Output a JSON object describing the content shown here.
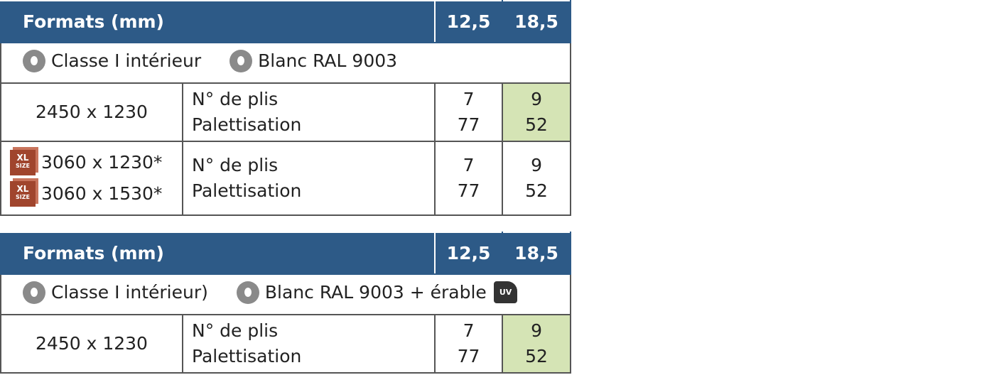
{
  "tables": [
    {
      "header": [
        "Formats (mm)",
        "12,5",
        "18,5"
      ],
      "info": [
        {
          "text": "Classe I intérieur"
        },
        {
          "text": "Blanc RAL 9003"
        }
      ],
      "rows": [
        {
          "formats": [
            {
              "text": "2450 x 1230"
            }
          ],
          "labels": [
            "N° de plis",
            "Palettisation"
          ],
          "c1": [
            "7",
            "77"
          ],
          "c2": [
            "9",
            "52"
          ],
          "highlight": true
        },
        {
          "formats": [
            {
              "text": "3060 x 1230*",
              "icon": [
                "XL",
                "SIZE"
              ]
            },
            {
              "text": "3060 x 1530*",
              "icon": [
                "XL",
                "SIZE"
              ]
            }
          ],
          "labels": [
            "N° de plis",
            "Palettisation"
          ],
          "c1": [
            "7",
            "77"
          ],
          "c2": [
            "9",
            "52"
          ],
          "highlight": false
        }
      ]
    },
    {
      "header": [
        "Formats (mm)",
        "12,5",
        "18,5"
      ],
      "info": [
        {
          "text": "Classe I intérieur)"
        },
        {
          "text": "Blanc RAL 9003 + érable",
          "badge": "UV"
        }
      ],
      "rows": [
        {
          "formats": [
            {
              "text": "2450 x 1230"
            }
          ],
          "labels": [
            "N° de plis",
            "Palettisation"
          ],
          "c1": [
            "7",
            "77"
          ],
          "c2": [
            "9",
            "52"
          ],
          "highlight": true
        }
      ]
    }
  ]
}
